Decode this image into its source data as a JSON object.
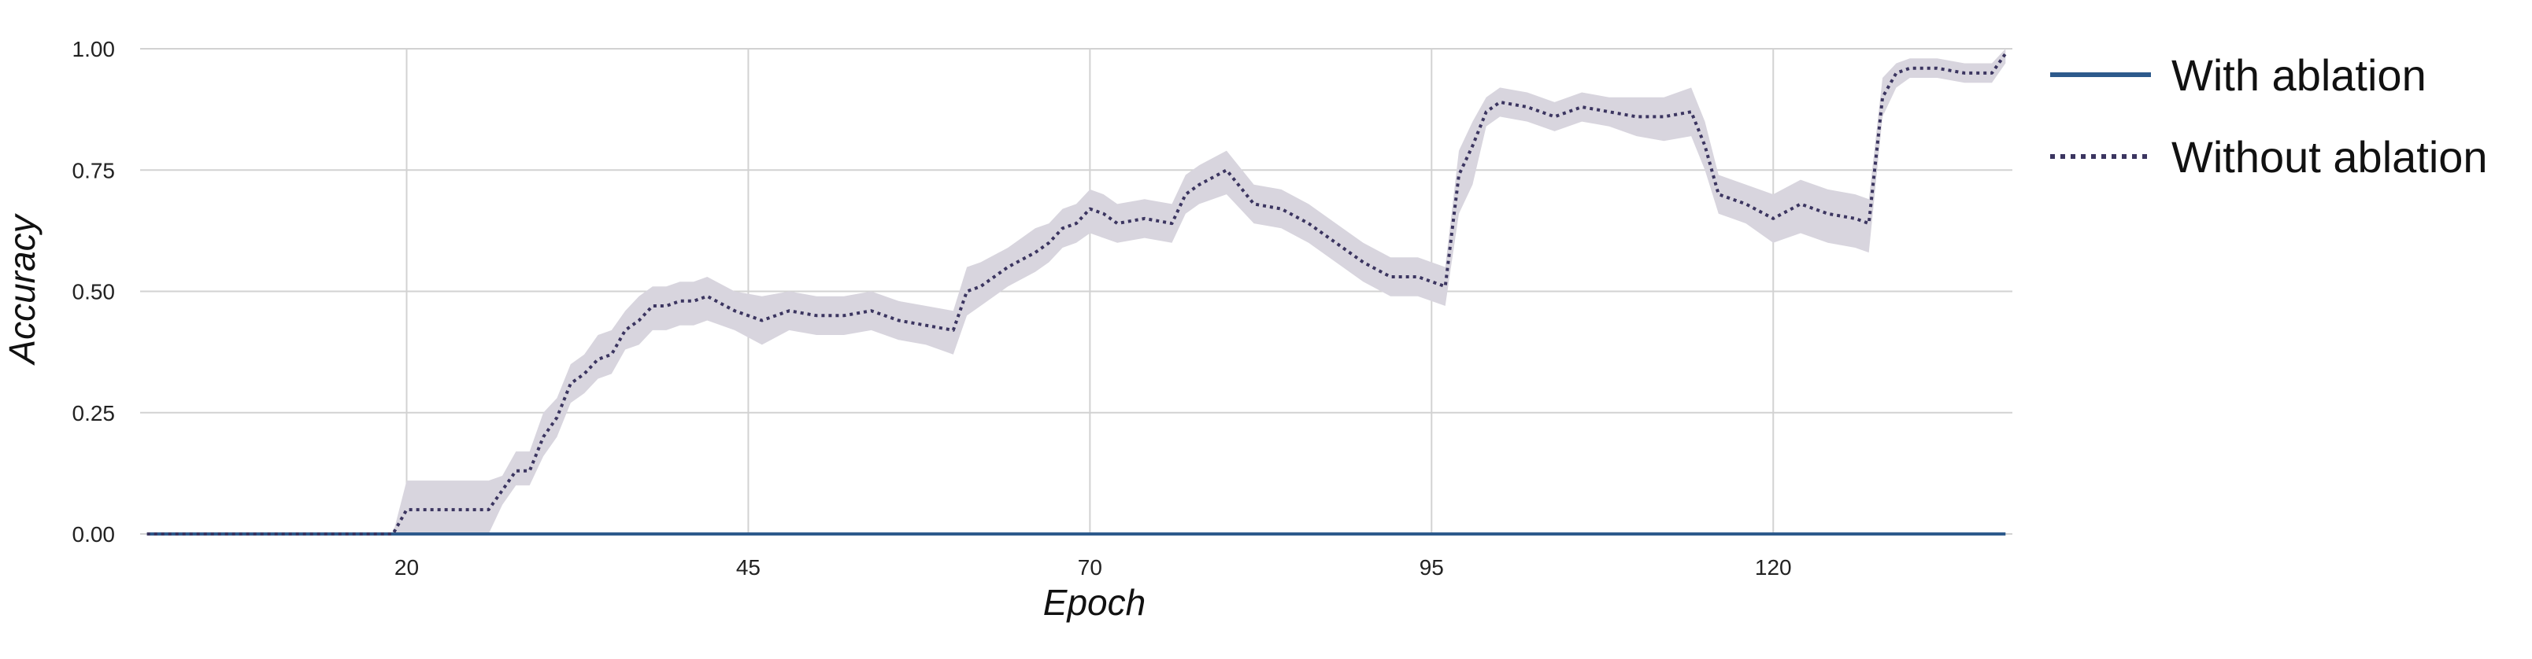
{
  "chart_data": {
    "type": "line",
    "title": "",
    "xlabel": "Epoch",
    "ylabel": "Accuracy",
    "xlim": [
      0.5,
      137.5
    ],
    "ylim": [
      0,
      1
    ],
    "xticks": [
      20,
      45,
      70,
      95,
      120
    ],
    "yticks": [
      0,
      0.25,
      0.5,
      0.75,
      1.0
    ],
    "ytick_labels": [
      "0.00",
      "0.25",
      "0.50",
      "0.75",
      "1.00"
    ],
    "grid": true,
    "legend_position": "right",
    "series": [
      {
        "name": "With ablation",
        "style": "solid",
        "color": "#2d5a8c",
        "x": [
          1,
          137
        ],
        "y": [
          0,
          0
        ]
      },
      {
        "name": "Without ablation",
        "style": "dotted",
        "color": "#3b3560",
        "band_color": "#d8d5de",
        "x": [
          1,
          19,
          20,
          26,
          27,
          28,
          29,
          30,
          31,
          32,
          33,
          34,
          35,
          36,
          37,
          38,
          39,
          40,
          41,
          42,
          44,
          46,
          48,
          50,
          52,
          54,
          56,
          58,
          60,
          61,
          62,
          64,
          66,
          67,
          68,
          69,
          70,
          71,
          72,
          74,
          76,
          77,
          78,
          80,
          82,
          84,
          86,
          88,
          90,
          92,
          94,
          96,
          97,
          98,
          99,
          100,
          102,
          104,
          106,
          108,
          110,
          112,
          114,
          115,
          116,
          117,
          118,
          120,
          122,
          124,
          126,
          127,
          128,
          129,
          130,
          132,
          134,
          136,
          137
        ],
        "y": [
          0,
          0,
          0.05,
          0.05,
          0.09,
          0.13,
          0.13,
          0.2,
          0.24,
          0.31,
          0.33,
          0.36,
          0.37,
          0.42,
          0.44,
          0.47,
          0.47,
          0.48,
          0.48,
          0.49,
          0.46,
          0.44,
          0.46,
          0.45,
          0.45,
          0.46,
          0.44,
          0.43,
          0.42,
          0.5,
          0.51,
          0.55,
          0.58,
          0.6,
          0.63,
          0.64,
          0.67,
          0.66,
          0.64,
          0.65,
          0.64,
          0.7,
          0.72,
          0.75,
          0.68,
          0.67,
          0.64,
          0.6,
          0.56,
          0.53,
          0.53,
          0.51,
          0.74,
          0.8,
          0.87,
          0.89,
          0.88,
          0.86,
          0.88,
          0.87,
          0.86,
          0.86,
          0.87,
          0.8,
          0.7,
          0.69,
          0.68,
          0.65,
          0.68,
          0.66,
          0.65,
          0.64,
          0.9,
          0.95,
          0.96,
          0.96,
          0.95,
          0.95,
          0.99
        ],
        "lower": [
          0,
          0,
          0,
          0,
          0.06,
          0.1,
          0.1,
          0.16,
          0.2,
          0.27,
          0.29,
          0.32,
          0.33,
          0.38,
          0.39,
          0.42,
          0.42,
          0.43,
          0.43,
          0.44,
          0.42,
          0.39,
          0.42,
          0.41,
          0.41,
          0.42,
          0.4,
          0.39,
          0.37,
          0.45,
          0.47,
          0.51,
          0.54,
          0.56,
          0.59,
          0.6,
          0.62,
          0.61,
          0.6,
          0.61,
          0.6,
          0.66,
          0.68,
          0.7,
          0.64,
          0.63,
          0.6,
          0.56,
          0.52,
          0.49,
          0.49,
          0.47,
          0.66,
          0.72,
          0.84,
          0.86,
          0.85,
          0.83,
          0.85,
          0.84,
          0.82,
          0.81,
          0.82,
          0.75,
          0.66,
          0.65,
          0.64,
          0.6,
          0.62,
          0.6,
          0.59,
          0.58,
          0.86,
          0.92,
          0.94,
          0.94,
          0.93,
          0.93,
          0.97
        ],
        "upper": [
          0,
          0,
          0.11,
          0.11,
          0.12,
          0.17,
          0.17,
          0.25,
          0.28,
          0.35,
          0.37,
          0.41,
          0.42,
          0.46,
          0.49,
          0.51,
          0.51,
          0.52,
          0.52,
          0.53,
          0.5,
          0.49,
          0.5,
          0.49,
          0.49,
          0.5,
          0.48,
          0.47,
          0.46,
          0.55,
          0.56,
          0.59,
          0.63,
          0.64,
          0.67,
          0.68,
          0.71,
          0.7,
          0.68,
          0.69,
          0.68,
          0.74,
          0.76,
          0.79,
          0.72,
          0.71,
          0.68,
          0.64,
          0.6,
          0.57,
          0.57,
          0.55,
          0.79,
          0.85,
          0.9,
          0.92,
          0.91,
          0.89,
          0.91,
          0.9,
          0.9,
          0.9,
          0.92,
          0.85,
          0.74,
          0.73,
          0.72,
          0.7,
          0.73,
          0.71,
          0.7,
          0.69,
          0.94,
          0.97,
          0.98,
          0.98,
          0.97,
          0.97,
          1.0
        ]
      }
    ]
  }
}
